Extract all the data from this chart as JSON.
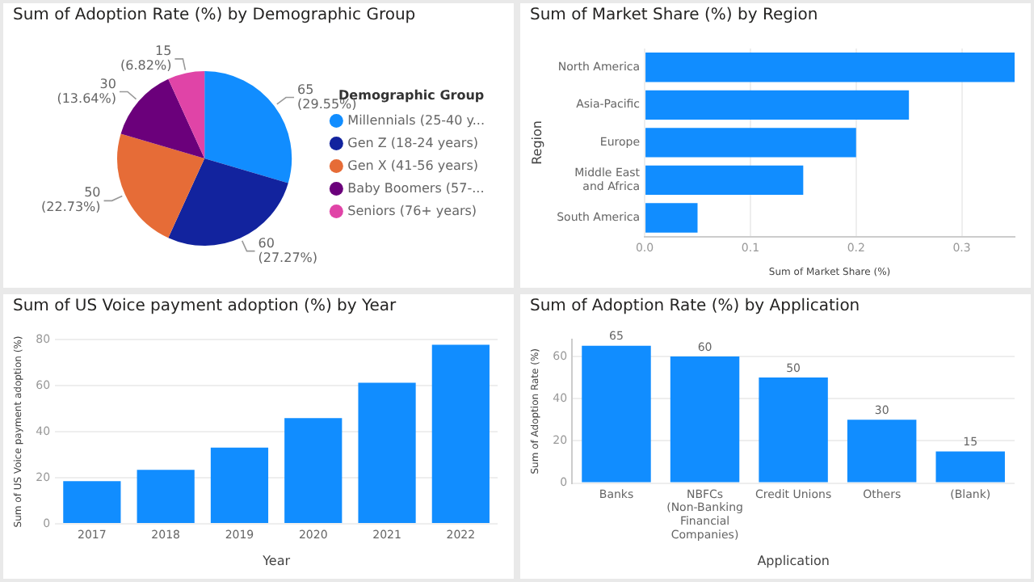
{
  "chart_data": [
    {
      "type": "pie",
      "title": "Sum of Adoption Rate (%) by Demographic Group",
      "legend": "right",
      "legend_title": "Demographic Group",
      "categories": [
        "Millennials (25-40 y...",
        "Gen Z (18-24 years)",
        "Gen X (41-56 years)",
        "Baby Boomers (57-...",
        "Seniors (76+ years)"
      ],
      "values": [
        65,
        60,
        50,
        30,
        15
      ],
      "colors": [
        "#118dff",
        "#12239e",
        "#e66c37",
        "#6b007b",
        "#e044a7"
      ],
      "value_labels": [
        "65 (29.55%)",
        "60 (27.27%)",
        "50 (22.73%)",
        "30 (13.64%)",
        "15 (6.82%)"
      ]
    },
    {
      "type": "bar",
      "orientation": "horizontal",
      "title": "Sum of Market Share (%) by Region",
      "xlabel": "Sum of Market Share (%)",
      "ylabel": "Region",
      "categories": [
        "North America",
        "Asia-Pacific",
        "Europe",
        "Middle East and Africa",
        "South America"
      ],
      "values": [
        0.35,
        0.25,
        0.2,
        0.15,
        0.05
      ],
      "color": "#118dff",
      "xlim": [
        0,
        0.35
      ],
      "xticks": [
        {
          "value": 0,
          "label": "0.0"
        },
        0.1,
        0.2,
        0.3
      ],
      "grid": "x"
    },
    {
      "type": "bar",
      "title": "Sum of US Voice payment adoption (%) by Year",
      "xlabel": "Year",
      "ylabel": "Sum of US Voice payment adoption (%)",
      "categories": [
        "2017",
        "2018",
        "2019",
        "2020",
        "2021",
        "2022"
      ],
      "values": [
        18.5,
        23.4,
        33.1,
        45.9,
        61.2,
        77.7
      ],
      "color": "#118dff",
      "ylim": [
        0,
        80
      ],
      "yticks": [
        0,
        20,
        40,
        60,
        80
      ],
      "grid": "y"
    },
    {
      "type": "bar",
      "title": "Sum of Adoption Rate (%) by Application",
      "xlabel": "Application",
      "ylabel": "Sum of Adoption Rate (%)",
      "categories": [
        "Banks",
        "NBFCs (Non-Banking Financial Companies)",
        "Credit Unions",
        "Others",
        "(Blank)"
      ],
      "values": [
        65,
        60,
        50,
        30,
        15
      ],
      "color": "#118dff",
      "ylim": [
        0,
        68
      ],
      "yticks": [
        0,
        20,
        40,
        60
      ],
      "grid": "y",
      "data_labels": true
    }
  ]
}
